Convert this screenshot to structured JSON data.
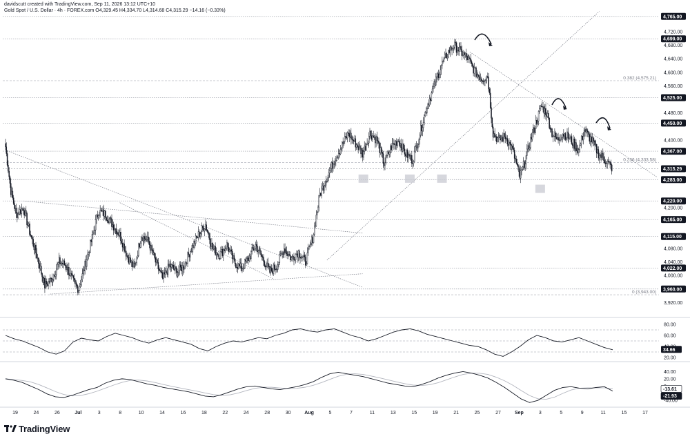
{
  "header": {
    "created_by": "davidscutt created with TradingView.com, Sep 11, 2026 13:12 UTC+10",
    "symbol_line": "Gold Spot / U.S. Dollar · 4h · FOREX.com",
    "ohlc": "O4,329.45  H4,334.70  L4,314.68  C4,315.29  −14.16 (−0.33%)"
  },
  "brand": {
    "name": "TradingView",
    "logo_icon": "tradingview-logo-icon"
  },
  "colors": {
    "candle": "#131722",
    "grid": "#e0e3eb",
    "dotted": "#9598a1",
    "last_price_bg": "#131722",
    "ma_slow": "#b2b5be"
  },
  "chart_data": [
    {
      "type": "candlestick",
      "ylim": [
        3880,
        4785
      ],
      "y_ticks": [
        "4,720.00",
        "4,680.00",
        "4,640.00",
        "4,600.00",
        "4,560.00",
        "4,480.00",
        "4,400.00",
        "4,200.00",
        "4,080.00",
        "4,040.00",
        "4,000.00",
        "3,920.00"
      ],
      "x_ticks": [
        "19",
        "24",
        "26",
        "Jul",
        "3",
        "8",
        "10",
        "14",
        "16",
        "18",
        "22",
        "24",
        "28",
        "30",
        "Aug",
        "5",
        "7",
        "11",
        "13",
        "15",
        "19",
        "21",
        "25",
        "27",
        "Sep",
        "3",
        "5",
        "9",
        "11",
        "15",
        "17"
      ],
      "key_levels": [
        "4,765.00",
        "4,699.00",
        "4,525.00",
        "4,450.00",
        "4,367.00",
        "4,283.00",
        "4,220.00",
        "4,165.00",
        "4,115.00",
        "4,022.00",
        "3,960.00"
      ],
      "last_price": "4,315.29",
      "fib_levels": [
        {
          "label": "0.382 (4,575.21)",
          "value": 4575.21
        },
        {
          "label": "0.236 (4,333.58)",
          "value": 4333.58
        },
        {
          "label": "0 (3,943.00)",
          "value": 3943.0
        }
      ],
      "path": [
        [
          0,
          4380
        ],
        [
          6,
          4250
        ],
        [
          12,
          4180
        ],
        [
          20,
          4200
        ],
        [
          28,
          4120
        ],
        [
          36,
          4050
        ],
        [
          44,
          3970
        ],
        [
          52,
          3990
        ],
        [
          60,
          4040
        ],
        [
          68,
          4030
        ],
        [
          76,
          3980
        ],
        [
          82,
          3960
        ],
        [
          88,
          4020
        ],
        [
          96,
          4100
        ],
        [
          104,
          4190
        ],
        [
          112,
          4180
        ],
        [
          120,
          4150
        ],
        [
          128,
          4120
        ],
        [
          136,
          4060
        ],
        [
          144,
          4020
        ],
        [
          152,
          4120
        ],
        [
          160,
          4100
        ],
        [
          168,
          4040
        ],
        [
          176,
          3990
        ],
        [
          184,
          4030
        ],
        [
          192,
          4010
        ],
        [
          200,
          4030
        ],
        [
          208,
          4080
        ],
        [
          216,
          4120
        ],
        [
          224,
          4150
        ],
        [
          232,
          4080
        ],
        [
          240,
          4060
        ],
        [
          248,
          4090
        ],
        [
          256,
          4040
        ],
        [
          264,
          4020
        ],
        [
          272,
          4050
        ],
        [
          280,
          4090
        ],
        [
          288,
          4050
        ],
        [
          296,
          4010
        ],
        [
          304,
          4030
        ],
        [
          312,
          4080
        ],
        [
          320,
          4050
        ],
        [
          328,
          4070
        ],
        [
          336,
          4040
        ],
        [
          344,
          4110
        ],
        [
          352,
          4240
        ],
        [
          360,
          4290
        ],
        [
          368,
          4340
        ],
        [
          376,
          4380
        ],
        [
          384,
          4420
        ],
        [
          392,
          4390
        ],
        [
          400,
          4360
        ],
        [
          408,
          4420
        ],
        [
          416,
          4400
        ],
        [
          424,
          4330
        ],
        [
          432,
          4380
        ],
        [
          440,
          4400
        ],
        [
          448,
          4360
        ],
        [
          456,
          4340
        ],
        [
          464,
          4420
        ],
        [
          472,
          4500
        ],
        [
          480,
          4560
        ],
        [
          488,
          4620
        ],
        [
          496,
          4660
        ],
        [
          502,
          4680
        ],
        [
          510,
          4660
        ],
        [
          518,
          4640
        ],
        [
          526,
          4600
        ],
        [
          534,
          4580
        ],
        [
          540,
          4590
        ],
        [
          546,
          4420
        ],
        [
          552,
          4400
        ],
        [
          560,
          4410
        ],
        [
          568,
          4370
        ],
        [
          576,
          4290
        ],
        [
          582,
          4340
        ],
        [
          588,
          4400
        ],
        [
          594,
          4450
        ],
        [
          600,
          4500
        ],
        [
          606,
          4480
        ],
        [
          612,
          4420
        ],
        [
          618,
          4400
        ],
        [
          624,
          4420
        ],
        [
          630,
          4410
        ],
        [
          636,
          4390
        ],
        [
          642,
          4370
        ],
        [
          648,
          4430
        ],
        [
          656,
          4400
        ],
        [
          664,
          4360
        ],
        [
          672,
          4340
        ],
        [
          680,
          4315
        ]
      ],
      "series": [
        {
          "name": "Gold Spot / U.S. Dollar"
        }
      ]
    },
    {
      "type": "line",
      "ylim": [
        15,
        90
      ],
      "y_ticks": [
        "80.00",
        "60.00",
        "40.00",
        "20.00"
      ],
      "last_value": "34.66",
      "levels": [
        70,
        50,
        30
      ],
      "values": [
        60,
        54,
        50,
        44,
        38,
        30,
        26,
        32,
        48,
        55,
        52,
        50,
        58,
        64,
        60,
        56,
        50,
        46,
        52,
        56,
        52,
        48,
        44,
        36,
        32,
        40,
        46,
        50,
        48,
        52,
        56,
        54,
        60,
        64,
        70,
        72,
        68,
        66,
        70,
        72,
        66,
        60,
        56,
        50,
        54,
        60,
        66,
        70,
        72,
        68,
        62,
        58,
        54,
        50,
        46,
        42,
        40,
        34,
        26,
        22,
        30,
        40,
        52,
        60,
        56,
        50,
        48,
        52,
        56,
        50,
        44,
        38,
        34
      ]
    },
    {
      "type": "line",
      "ylim": [
        -55,
        60
      ],
      "y_ticks": [
        "40.00",
        "20.00",
        "0",
        "-40.00"
      ],
      "last_values": [
        "-13.61",
        "-21.93"
      ],
      "values": [
        20,
        16,
        10,
        0,
        -10,
        -22,
        -30,
        -32,
        -26,
        -18,
        -10,
        -4,
        8,
        16,
        20,
        18,
        12,
        6,
        2,
        -4,
        -8,
        -12,
        -16,
        -22,
        -28,
        -30,
        -24,
        -16,
        -8,
        -2,
        0,
        -4,
        -8,
        -10,
        -6,
        -2,
        4,
        12,
        24,
        34,
        38,
        34,
        30,
        26,
        20,
        14,
        8,
        4,
        0,
        -2,
        4,
        12,
        22,
        30,
        36,
        40,
        36,
        30,
        22,
        10,
        -4,
        -20,
        -36,
        -46,
        -40,
        -26,
        -12,
        -4,
        -2,
        -6,
        -8,
        -4,
        -2,
        -14
      ]
    }
  ]
}
